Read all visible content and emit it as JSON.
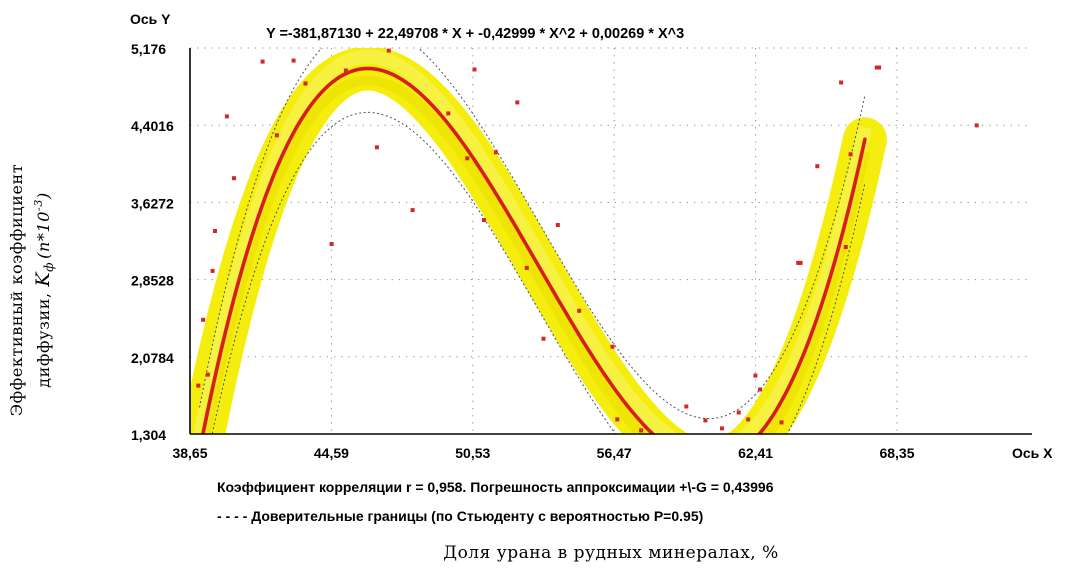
{
  "chart_data": {
    "type": "scatter",
    "title": "Y =-381,87130 +  22,49708 * X +  -0,42999 * X^2 +   0,00269 * X^3",
    "xlabel": "Доля урана в рудных минералах, %",
    "ylabel": "Эффективный коэффициент диффузии, Kф (n*10-3)",
    "ylabel_parts": {
      "line1": "Эффективный коэффициент",
      "line2_prefix": "диффузии, ",
      "symbol": "K",
      "subscript": "ф",
      "unit_open": "(n*10",
      "superscript": "-3",
      "unit_close": ")"
    },
    "x_axis_name": "Ось X",
    "y_axis_name": "Ось Y",
    "x_ticks": [
      38.65,
      44.59,
      50.53,
      56.47,
      62.41,
      68.35
    ],
    "x_tick_labels": [
      "38,65",
      "44,59",
      "50,53",
      "56,47",
      "62,41",
      "68,35"
    ],
    "y_ticks": [
      1.304,
      2.0784,
      2.8528,
      3.6272,
      4.4016,
      5.176
    ],
    "y_tick_labels": [
      "1,304",
      "2,0784",
      "2,8528",
      "3,6272",
      "4,4016",
      "5,176"
    ],
    "xlim": [
      38.65,
      72.0
    ],
    "ylim": [
      1.304,
      5.176
    ],
    "grid": true,
    "fit": {
      "kind": "cubic",
      "coefficients": [
        -381.8713,
        22.49708,
        -0.42999,
        0.00269
      ],
      "x_range": [
        39.05,
        67.0
      ],
      "confidence_halfwidth": 0.44
    },
    "points": {
      "x": [
        39.0,
        39.2,
        39.4,
        39.6,
        39.7,
        40.2,
        40.5,
        41.7,
        42.3,
        43.0,
        43.5,
        44.6,
        45.2,
        46.5,
        47.0,
        48.0,
        49.5,
        50.3,
        50.6,
        51.0,
        51.5,
        52.4,
        52.8,
        53.5,
        54.1,
        55.0,
        56.4,
        56.6,
        57.6,
        59.5,
        60.3,
        61.0,
        61.7,
        62.1,
        62.4,
        62.6,
        63.5,
        64.2,
        64.3,
        65.0,
        66.0,
        66.2,
        66.4,
        67.5,
        67.6,
        71.7
      ],
      "y": [
        1.79,
        2.45,
        1.9,
        2.94,
        3.34,
        4.49,
        3.87,
        5.04,
        4.3,
        5.05,
        4.82,
        3.21,
        4.95,
        4.18,
        5.15,
        3.55,
        4.52,
        4.07,
        4.96,
        3.45,
        4.13,
        4.63,
        2.97,
        2.26,
        3.4,
        2.54,
        2.18,
        1.45,
        1.34,
        1.58,
        1.44,
        1.36,
        1.52,
        1.45,
        1.89,
        1.75,
        1.42,
        3.02,
        3.02,
        3.99,
        4.83,
        3.18,
        4.11,
        4.98,
        4.98,
        4.4
      ]
    },
    "footnote1": "Коэффициент корреляции r =  0,958.  Погрешность аппроксимации +\\-G =   0,43996",
    "footnote2": "- - - -  Доверительные границы (по Стьюденту с вероятностью P=0.95)",
    "colors": {
      "fit_line": "#d71e1e",
      "band": "#f4ec00",
      "points": "#d22828",
      "confidence": "#475266",
      "grid": "#8a8a8a",
      "axes": "#000000"
    }
  }
}
